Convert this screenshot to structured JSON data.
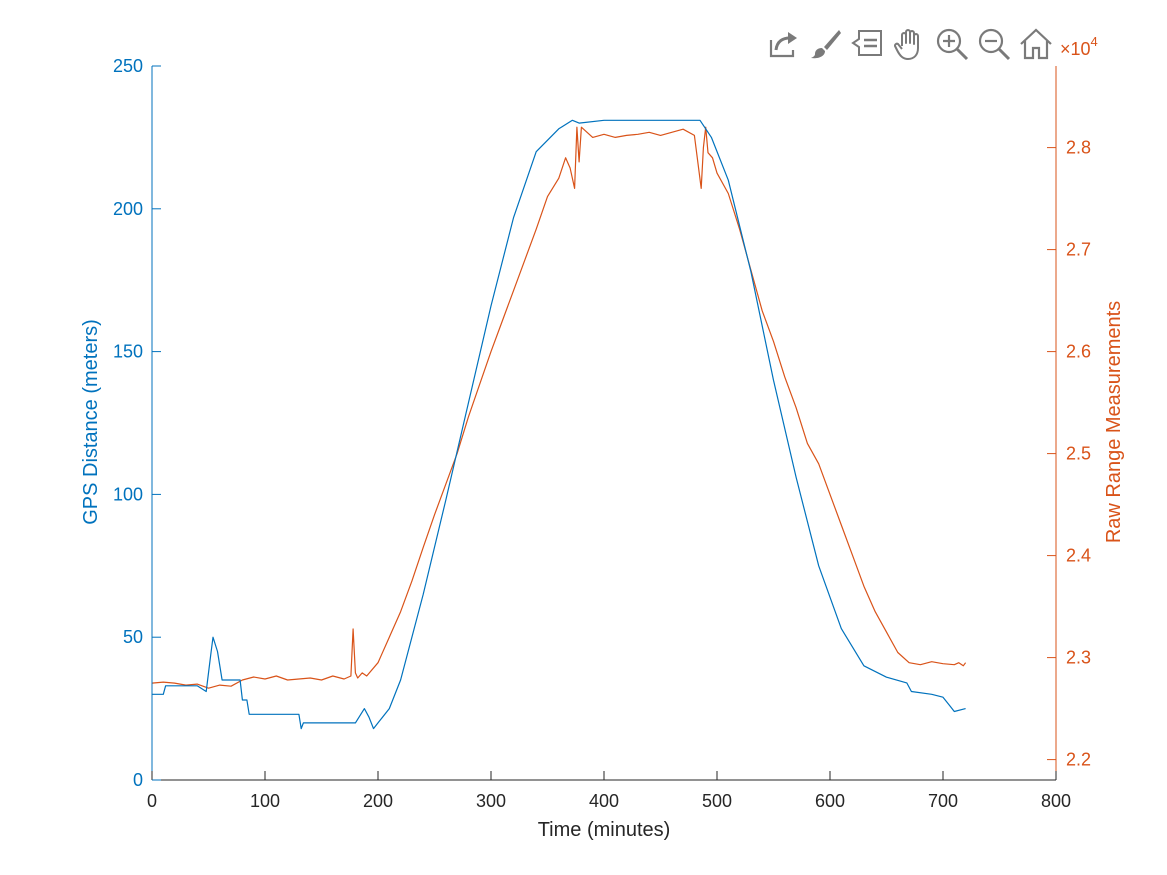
{
  "toolbar": {
    "buttons": [
      {
        "name": "export-icon"
      },
      {
        "name": "brush-icon"
      },
      {
        "name": "data-tips-icon"
      },
      {
        "name": "pan-hand-icon"
      },
      {
        "name": "zoom-in-icon"
      },
      {
        "name": "zoom-out-icon"
      },
      {
        "name": "home-icon"
      }
    ]
  },
  "colors": {
    "left_axis": "#0072BD",
    "right_axis": "#D95319",
    "x_axis": "#262626"
  },
  "chart_data": {
    "type": "line",
    "title": "",
    "xlabel": "Time (minutes)",
    "ylabel_left": "GPS Distance (meters)",
    "ylabel_right": "Raw Range Measurements",
    "right_exponent_label": "×10",
    "right_exponent_power": "4",
    "xlim": [
      0,
      800
    ],
    "ylim_left": [
      0,
      250
    ],
    "ylim_right": [
      2.18,
      2.88
    ],
    "x_ticks": [
      0,
      100,
      200,
      300,
      400,
      500,
      600,
      700,
      800
    ],
    "x_tick_labels": [
      "0",
      "100",
      "200",
      "300",
      "400",
      "500",
      "600",
      "700",
      "800"
    ],
    "y_left_ticks": [
      0,
      50,
      100,
      150,
      200,
      250
    ],
    "y_left_tick_labels": [
      "0",
      "50",
      "100",
      "150",
      "200",
      "250"
    ],
    "y_right_ticks": [
      2.2,
      2.3,
      2.4,
      2.5,
      2.6,
      2.7,
      2.8
    ],
    "y_right_tick_labels": [
      "2.2",
      "2.3",
      "2.4",
      "2.5",
      "2.6",
      "2.7",
      "2.8"
    ],
    "series": [
      {
        "name": "GPS Distance",
        "axis": "left",
        "x": [
          0,
          10,
          12,
          40,
          48,
          52,
          54,
          58,
          62,
          78,
          80,
          84,
          86,
          100,
          110,
          130,
          132,
          134,
          140,
          150,
          160,
          170,
          180,
          188,
          192,
          196,
          200,
          210,
          220,
          240,
          260,
          280,
          300,
          320,
          340,
          360,
          372,
          378,
          400,
          420,
          440,
          460,
          485,
          495,
          510,
          530,
          550,
          570,
          590,
          610,
          630,
          650,
          668,
          672,
          690,
          700,
          706,
          710,
          720
        ],
        "values": [
          30,
          30,
          33,
          33,
          31,
          44,
          50,
          45,
          35,
          35,
          28,
          28,
          23,
          23,
          23,
          23,
          18,
          20,
          20,
          20,
          20,
          20,
          20,
          25,
          22,
          18,
          20,
          25,
          35,
          65,
          98,
          132,
          166,
          197,
          220,
          228,
          231,
          230,
          231,
          231,
          231,
          231,
          231,
          225,
          210,
          178,
          140,
          106,
          75,
          53,
          40,
          36,
          34,
          31,
          30,
          29,
          26,
          24,
          25
        ]
      },
      {
        "name": "Raw Range Measurements",
        "axis": "right",
        "x": [
          0,
          10,
          20,
          30,
          40,
          50,
          60,
          70,
          80,
          90,
          100,
          110,
          120,
          130,
          140,
          150,
          160,
          170,
          176,
          178,
          180,
          182,
          186,
          190,
          200,
          210,
          220,
          230,
          240,
          250,
          260,
          270,
          280,
          290,
          300,
          310,
          320,
          330,
          340,
          350,
          360,
          366,
          370,
          374,
          376,
          378,
          380,
          390,
          400,
          410,
          420,
          430,
          440,
          450,
          460,
          470,
          480,
          486,
          488,
          490,
          492,
          496,
          500,
          510,
          520,
          530,
          540,
          550,
          560,
          570,
          580,
          590,
          600,
          610,
          620,
          630,
          640,
          650,
          660,
          670,
          680,
          690,
          700,
          710,
          714,
          718,
          720
        ],
        "values": [
          2.275,
          2.276,
          2.275,
          2.273,
          2.274,
          2.27,
          2.273,
          2.272,
          2.278,
          2.281,
          2.279,
          2.282,
          2.278,
          2.279,
          2.28,
          2.278,
          2.282,
          2.279,
          2.282,
          2.328,
          2.285,
          2.28,
          2.285,
          2.282,
          2.295,
          2.32,
          2.345,
          2.375,
          2.408,
          2.44,
          2.47,
          2.5,
          2.536,
          2.568,
          2.6,
          2.63,
          2.66,
          2.69,
          2.72,
          2.752,
          2.77,
          2.79,
          2.78,
          2.76,
          2.82,
          2.786,
          2.82,
          2.81,
          2.813,
          2.81,
          2.812,
          2.813,
          2.815,
          2.812,
          2.815,
          2.818,
          2.812,
          2.76,
          2.8,
          2.82,
          2.795,
          2.79,
          2.775,
          2.755,
          2.72,
          2.68,
          2.64,
          2.61,
          2.575,
          2.545,
          2.51,
          2.49,
          2.46,
          2.43,
          2.4,
          2.37,
          2.345,
          2.325,
          2.305,
          2.295,
          2.293,
          2.296,
          2.294,
          2.293,
          2.295,
          2.292,
          2.295
        ]
      }
    ]
  }
}
